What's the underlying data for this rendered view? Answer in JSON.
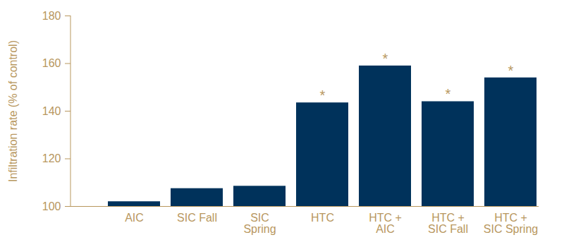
{
  "chart_data": {
    "type": "bar",
    "y_label": "Infiltration rate (% of control)",
    "categories": [
      "AIC",
      "SIC Fall",
      "SIC\nSpring",
      "HTC",
      "HTC +\nAIC",
      "HTC +\nSIC Fall",
      "HTC +\nSIC Spring"
    ],
    "values": [
      102,
      107.5,
      108.5,
      143.5,
      159,
      144,
      154
    ],
    "color": "#00325b",
    "annotations": [
      null,
      null,
      null,
      "*",
      "*",
      "*",
      "*"
    ],
    "ylim": [
      100,
      180
    ],
    "yticks": [
      100,
      120,
      140,
      160,
      180
    ],
    "grid": false
  }
}
